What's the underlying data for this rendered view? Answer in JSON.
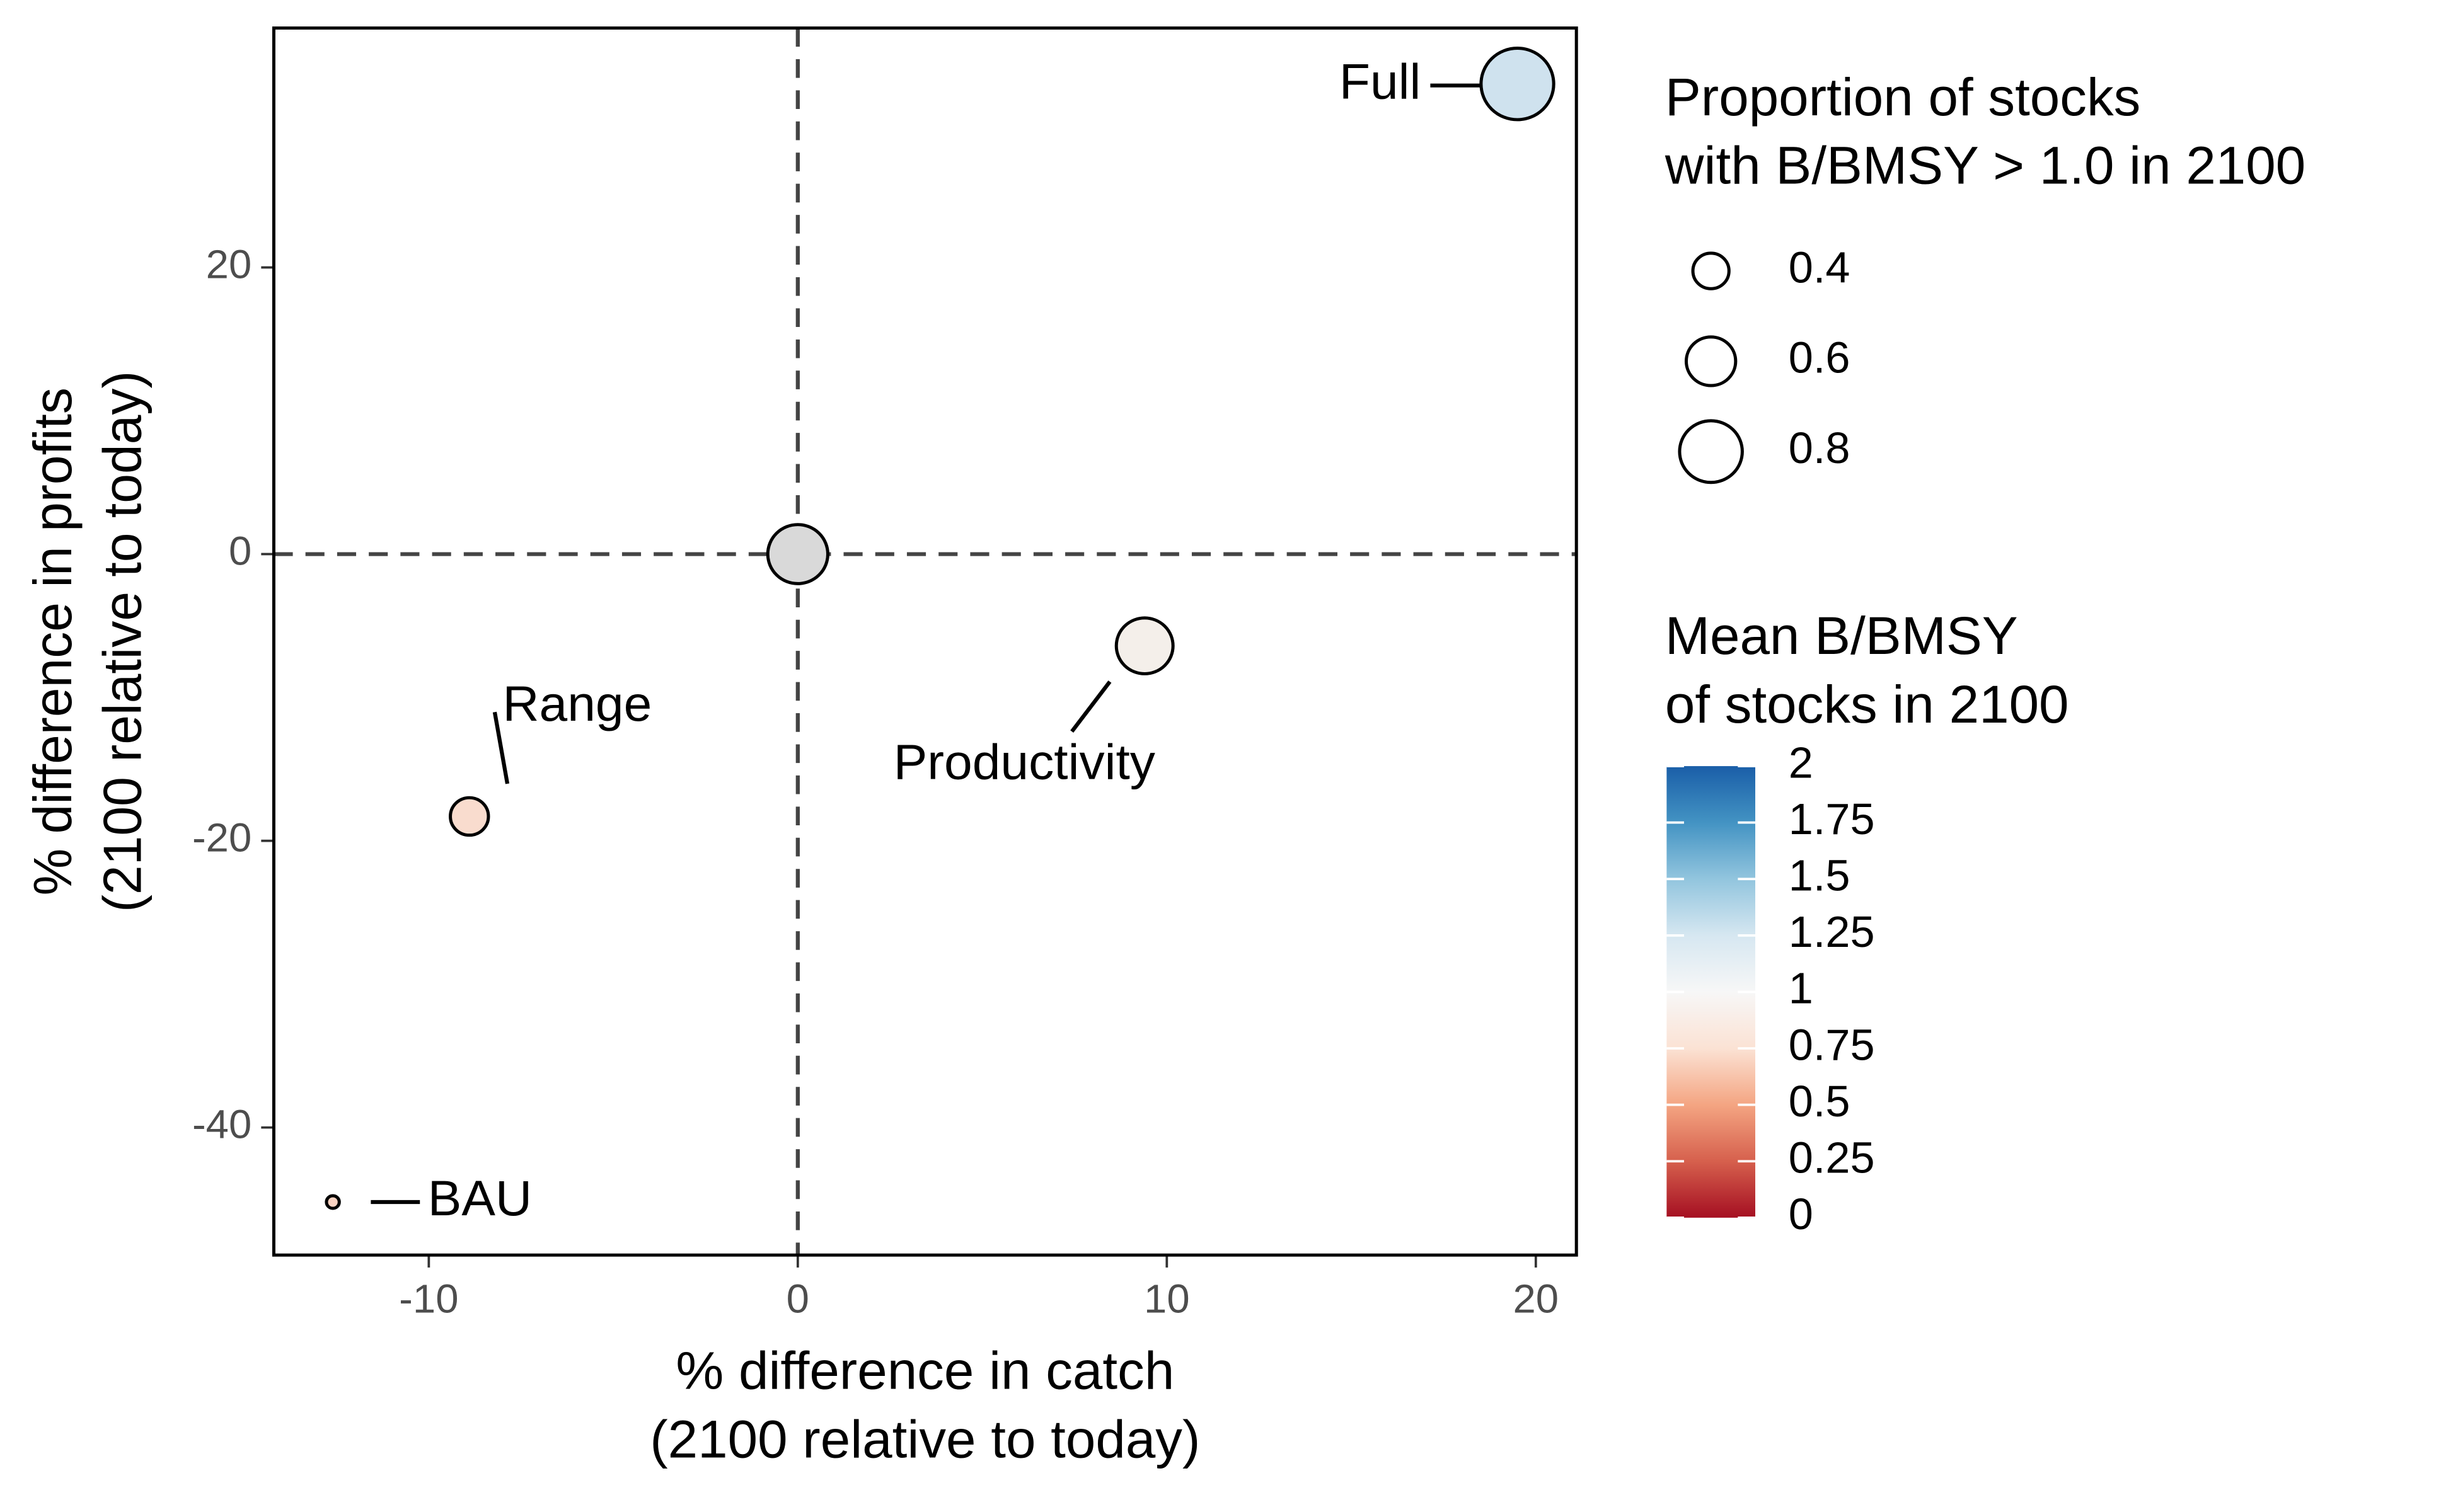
{
  "chart_data": {
    "type": "scatter",
    "xlabel": [
      "% difference in catch",
      "(2100 relative to today)"
    ],
    "ylabel": [
      "% difference in profits",
      "(2100 relative to today)"
    ],
    "x": [
      19.5,
      0,
      9.4,
      -8.9,
      -12.6
    ],
    "values": [
      32.8,
      0,
      -6.4,
      -18.3,
      -45.2
    ],
    "sizes": [
      0.95,
      0.76,
      0.71,
      0.43,
      0.05
    ],
    "colors": [
      "#cfe2ee",
      "#d9d9d9",
      "#f4efea",
      "#f9dcce",
      "#fbd3c2"
    ],
    "labels": [
      "Full",
      null,
      "Productivity",
      "Range",
      "BAU"
    ],
    "xlim": [
      -14.2,
      21.1
    ],
    "ylim": [
      -48.9,
      36.7
    ],
    "xticks": [
      -10,
      0,
      10,
      20
    ],
    "yticks": [
      -40,
      -20,
      0,
      20
    ],
    "hlines": [
      0
    ],
    "vlines": [
      0
    ],
    "size_legend": {
      "title": [
        "Proportion of stocks",
        "with B/BMSY > 1.0 in 2100"
      ],
      "values": [
        0.4,
        0.6,
        0.8
      ]
    },
    "color_legend": {
      "title": [
        "Mean B/BMSY",
        "of stocks in 2100"
      ],
      "lim": [
        0,
        2
      ],
      "ticks": [
        0,
        0.25,
        0.5,
        0.75,
        1,
        1.25,
        1.5,
        1.75,
        2
      ],
      "colors": [
        "#a50f22",
        "#d6604d",
        "#f4a582",
        "#fbe2d4",
        "#f7f7f7",
        "#d6e7f1",
        "#92c5de",
        "#4393c3",
        "#1a5ea8"
      ]
    }
  }
}
